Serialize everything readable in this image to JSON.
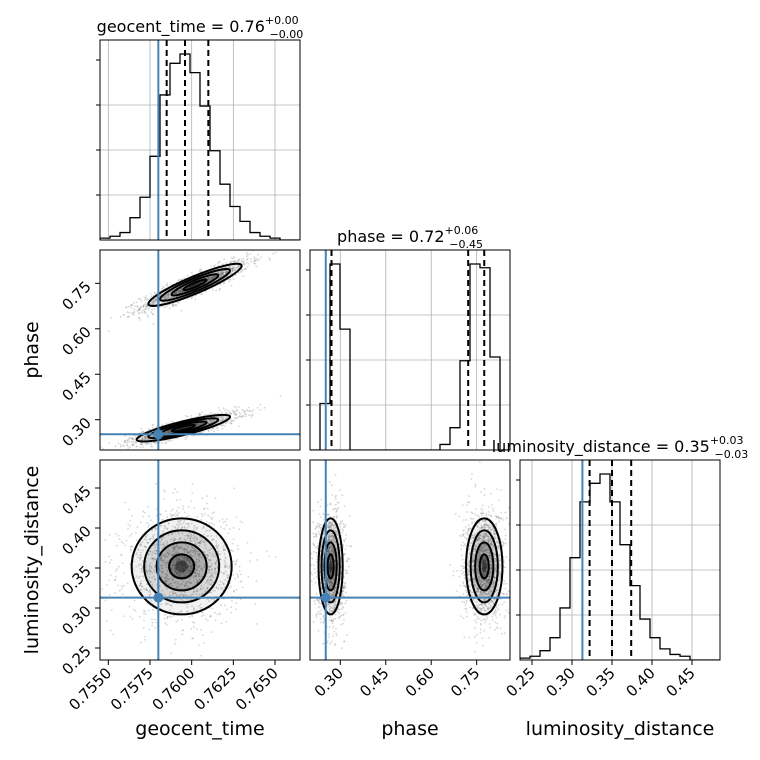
{
  "chart_data": {
    "type": "corner",
    "parameters": [
      "geocent_time",
      "phase",
      "luminosity_distance"
    ],
    "titles": [
      {
        "name": "geocent_time",
        "median": "0.76",
        "plus": "+0.00",
        "minus": "−0.00"
      },
      {
        "name": "phase",
        "median": "0.72",
        "plus": "+0.06",
        "minus": "−0.45"
      },
      {
        "name": "luminosity_distance",
        "median": "0.35",
        "plus": "+0.03",
        "minus": "−0.03"
      }
    ],
    "truths": {
      "geocent_time": 0.758,
      "phase": 0.252,
      "luminosity_distance": 0.313
    },
    "ranges": {
      "geocent_time": [
        0.7545,
        0.7665
      ],
      "phase": [
        0.2,
        0.86
      ],
      "luminosity_distance": [
        0.235,
        0.485
      ]
    },
    "ticks": {
      "geocent_time": [
        0.755,
        0.7575,
        0.76,
        0.7625,
        0.765
      ],
      "phase": [
        0.3,
        0.45,
        0.6,
        0.75
      ],
      "luminosity_distance": [
        0.25,
        0.3,
        0.35,
        0.4,
        0.45
      ]
    },
    "tick_labels": {
      "geocent_time": [
        "0.7550",
        "0.7575",
        "0.7600",
        "0.7625",
        "0.7650"
      ],
      "phase": [
        "0.30",
        "0.45",
        "0.60",
        "0.75"
      ],
      "luminosity_distance": [
        "0.25",
        "0.30",
        "0.35",
        "0.40",
        "0.45"
      ]
    },
    "quantiles": {
      "geocent_time": [
        0.7585,
        0.7596,
        0.761
      ],
      "phase": [
        0.271,
        0.722,
        0.775
      ],
      "luminosity_distance": [
        0.322,
        0.35,
        0.374
      ]
    },
    "histograms": {
      "geocent_time": {
        "edges": [
          0.7545,
          0.7551,
          0.7557,
          0.7563,
          0.7569,
          0.7575,
          0.7581,
          0.7587,
          0.7593,
          0.7599,
          0.7605,
          0.7611,
          0.7617,
          0.7623,
          0.7629,
          0.7635,
          0.7641,
          0.7647,
          0.7653,
          0.7659,
          0.7665
        ],
        "counts": [
          0.01,
          0.02,
          0.04,
          0.12,
          0.23,
          0.45,
          0.78,
          0.95,
          1.0,
          0.9,
          0.72,
          0.48,
          0.3,
          0.18,
          0.1,
          0.04,
          0.02,
          0.01,
          0.0,
          0.0
        ]
      },
      "phase": {
        "edges": [
          0.2,
          0.233,
          0.266,
          0.299,
          0.332,
          0.365,
          0.398,
          0.431,
          0.464,
          0.497,
          0.53,
          0.563,
          0.596,
          0.629,
          0.662,
          0.695,
          0.728,
          0.761,
          0.794,
          0.827,
          0.86
        ],
        "counts": [
          0.0,
          0.25,
          1.0,
          0.65,
          0.0,
          0.0,
          0.0,
          0.0,
          0.0,
          0.0,
          0.0,
          0.0,
          0.0,
          0.03,
          0.12,
          0.48,
          1.0,
          0.98,
          0.5,
          0.0
        ]
      },
      "luminosity_distance": {
        "edges": [
          0.235,
          0.2475,
          0.26,
          0.2725,
          0.285,
          0.2975,
          0.31,
          0.3225,
          0.335,
          0.3475,
          0.36,
          0.3725,
          0.385,
          0.3975,
          0.41,
          0.4225,
          0.435,
          0.4475,
          0.46,
          0.4725,
          0.485
        ],
        "counts": [
          0.01,
          0.02,
          0.05,
          0.12,
          0.28,
          0.55,
          0.85,
          0.95,
          1.0,
          0.85,
          0.62,
          0.4,
          0.22,
          0.12,
          0.06,
          0.03,
          0.02,
          0.0,
          0.0,
          0.0
        ]
      }
    },
    "modes_2d": {
      "geocent_time_vs_phase": [
        {
          "cx": 0.7602,
          "cy": 0.745,
          "sx": 0.0014,
          "sy": 0.035,
          "corr": 0.9
        },
        {
          "cx": 0.7595,
          "cy": 0.272,
          "sx": 0.0014,
          "sy": 0.022,
          "corr": 0.85
        }
      ],
      "geocent_time_vs_luminosity_distance": [
        {
          "cx": 0.7594,
          "cy": 0.352,
          "sx": 0.0015,
          "sy": 0.03,
          "corr": 0.0
        }
      ],
      "phase_vs_luminosity_distance": [
        {
          "cx": 0.268,
          "cy": 0.352,
          "sx": 0.02,
          "sy": 0.03,
          "corr": 0.0
        },
        {
          "cx": 0.775,
          "cy": 0.352,
          "sx": 0.03,
          "sy": 0.03,
          "corr": 0.0
        }
      ]
    },
    "colors": {
      "truth": "#4682b4",
      "line": "#000000",
      "grid": "#b0b0b0",
      "scatter": "#8a8a8a"
    },
    "grid": true
  }
}
